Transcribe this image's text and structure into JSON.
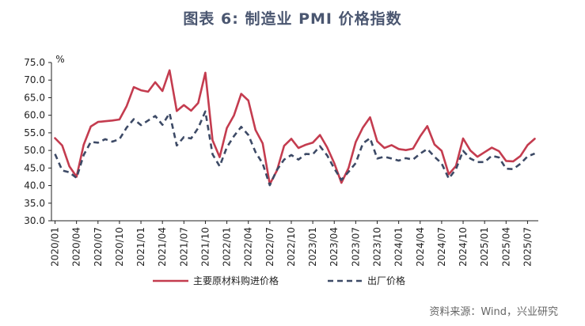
{
  "title": "图表 6:   制造业 PMI 价格指数",
  "source": "资料来源：Wind，兴业研究",
  "colors": {
    "series1": "#c43c4f",
    "series2": "#3d4a66",
    "title": "#4a5670"
  },
  "chart_data": {
    "type": "line",
    "title": "制造业 PMI 价格指数",
    "ylabel": "%",
    "ylim": [
      30,
      75
    ],
    "yticks": [
      "30.0",
      "35.0",
      "40.0",
      "45.0",
      "50.0",
      "55.0",
      "60.0",
      "65.0",
      "70.0",
      "75.0"
    ],
    "grid": false,
    "legend_position": "bottom",
    "x": [
      "2020/01",
      "2020/02",
      "2020/03",
      "2020/04",
      "2020/05",
      "2020/06",
      "2020/07",
      "2020/08",
      "2020/09",
      "2020/10",
      "2020/11",
      "2020/12",
      "2021/01",
      "2021/02",
      "2021/03",
      "2021/04",
      "2021/05",
      "2021/06",
      "2021/07",
      "2021/08",
      "2021/09",
      "2021/10",
      "2021/11",
      "2021/12",
      "2022/01",
      "2022/02",
      "2022/03",
      "2022/04",
      "2022/05",
      "2022/06",
      "2022/07",
      "2022/08",
      "2022/09",
      "2022/10",
      "2022/11",
      "2022/12",
      "2023/01",
      "2023/02",
      "2023/03",
      "2023/04",
      "2023/05",
      "2023/06",
      "2023/07",
      "2023/08",
      "2023/09",
      "2023/10",
      "2023/11",
      "2023/12",
      "2024/01",
      "2024/02",
      "2024/03",
      "2024/04",
      "2024/05",
      "2024/06",
      "2024/07",
      "2024/08",
      "2024/09",
      "2024/10",
      "2024/11",
      "2024/12",
      "2025/01",
      "2025/02",
      "2025/03",
      "2025/04",
      "2025/05",
      "2025/06",
      "2025/07",
      "2025/08"
    ],
    "xticks": [
      "2020/01",
      "2020/04",
      "2020/07",
      "2020/10",
      "2021/01",
      "2021/04",
      "2021/07",
      "2021/10",
      "2022/01",
      "2022/04",
      "2022/07",
      "2022/10",
      "2023/01",
      "2023/04",
      "2023/07",
      "2023/10",
      "2024/01",
      "2024/04",
      "2024/07",
      "2024/10",
      "2025/01",
      "2025/04",
      "2025/07"
    ],
    "series": [
      {
        "name": "主要原材料购进价格",
        "style": "solid",
        "values": [
          53.5,
          51.4,
          45.5,
          42.5,
          51.6,
          56.8,
          58.1,
          58.3,
          58.5,
          58.8,
          62.6,
          68.0,
          67.1,
          66.7,
          69.4,
          66.9,
          72.8,
          61.2,
          62.9,
          61.3,
          63.5,
          72.1,
          52.9,
          48.1,
          56.4,
          60.0,
          66.1,
          64.2,
          55.8,
          52.0,
          40.4,
          44.3,
          51.3,
          53.3,
          50.7,
          51.6,
          52.2,
          54.4,
          50.9,
          46.4,
          40.8,
          45.0,
          52.4,
          56.5,
          59.4,
          52.6,
          50.7,
          51.5,
          50.4,
          50.1,
          50.5,
          54.0,
          56.9,
          51.7,
          49.9,
          43.2,
          45.6,
          53.4,
          50.0,
          48.2,
          49.5,
          50.8,
          49.8,
          47.0,
          46.9,
          48.4,
          51.5,
          53.3
        ]
      },
      {
        "name": "出厂价格",
        "style": "dashed",
        "values": [
          49.0,
          44.3,
          43.8,
          42.2,
          48.7,
          52.4,
          52.2,
          53.2,
          52.5,
          53.2,
          56.5,
          58.9,
          57.2,
          58.5,
          59.8,
          57.3,
          60.6,
          51.4,
          53.8,
          53.4,
          56.4,
          61.1,
          48.9,
          45.5,
          50.9,
          54.1,
          56.7,
          54.4,
          49.5,
          46.3,
          40.1,
          44.5,
          47.4,
          48.7,
          47.4,
          49.0,
          48.9,
          51.2,
          48.6,
          44.9,
          41.6,
          43.9,
          46.4,
          52.0,
          53.5,
          47.7,
          48.2,
          47.7,
          47.1,
          47.8,
          47.4,
          49.1,
          50.4,
          48.2,
          46.3,
          42.0,
          44.7,
          49.9,
          47.7,
          46.7,
          46.7,
          48.5,
          48.0,
          44.8,
          44.7,
          46.2,
          48.3,
          49.1
        ]
      }
    ]
  }
}
